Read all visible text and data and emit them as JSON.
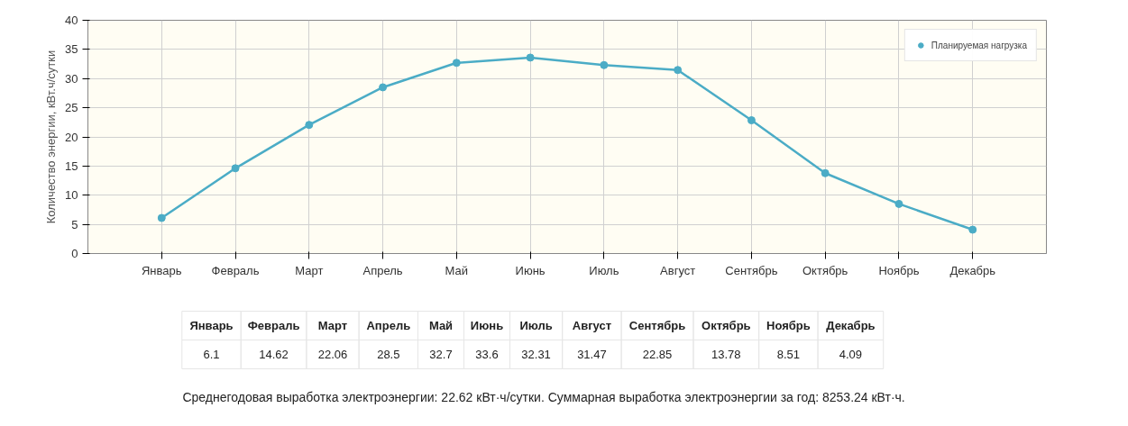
{
  "chart_data": [
    {
      "type": "line",
      "ylabel": "Количество энергии, кВт.ч/сутки",
      "categories": [
        "Январь",
        "Февраль",
        "Март",
        "Апрель",
        "Май",
        "Июнь",
        "Июль",
        "Август",
        "Сентябрь",
        "Октябрь",
        "Ноябрь",
        "Декабрь"
      ],
      "series": [
        {
          "name": "Планируемая нагрузка",
          "color": "#4bacc6",
          "values": [
            6.1,
            14.62,
            22.06,
            28.5,
            32.7,
            33.6,
            32.31,
            31.47,
            22.85,
            13.78,
            8.51,
            4.09
          ]
        }
      ],
      "ylim": [
        0,
        40
      ],
      "yticks": [
        0,
        5,
        10,
        15,
        20,
        25,
        30,
        35,
        40
      ],
      "grid": true,
      "legend": "top right",
      "marker": "circle",
      "line_style": "solid"
    },
    {
      "type": "other",
      "categories": [
        "Январь",
        "Февраль",
        "Март",
        "Апрель",
        "Май",
        "Июнь",
        "Июль",
        "Август",
        "Сентябрь",
        "Октябрь",
        "Ноябрь",
        "Декабрь"
      ],
      "values": [
        6.1,
        14.62,
        22.06,
        28.5,
        32.7,
        33.6,
        32.31,
        31.47,
        22.85,
        13.78,
        8.51,
        4.09
      ],
      "data_labels": true,
      "annotations": [
        "Среднегодовая выработка электроэнергии: 22.62 кВт·ч/сутки. Суммарная выработка электроэнергии за год: 8253.24 кВт·ч."
      ]
    }
  ]
}
